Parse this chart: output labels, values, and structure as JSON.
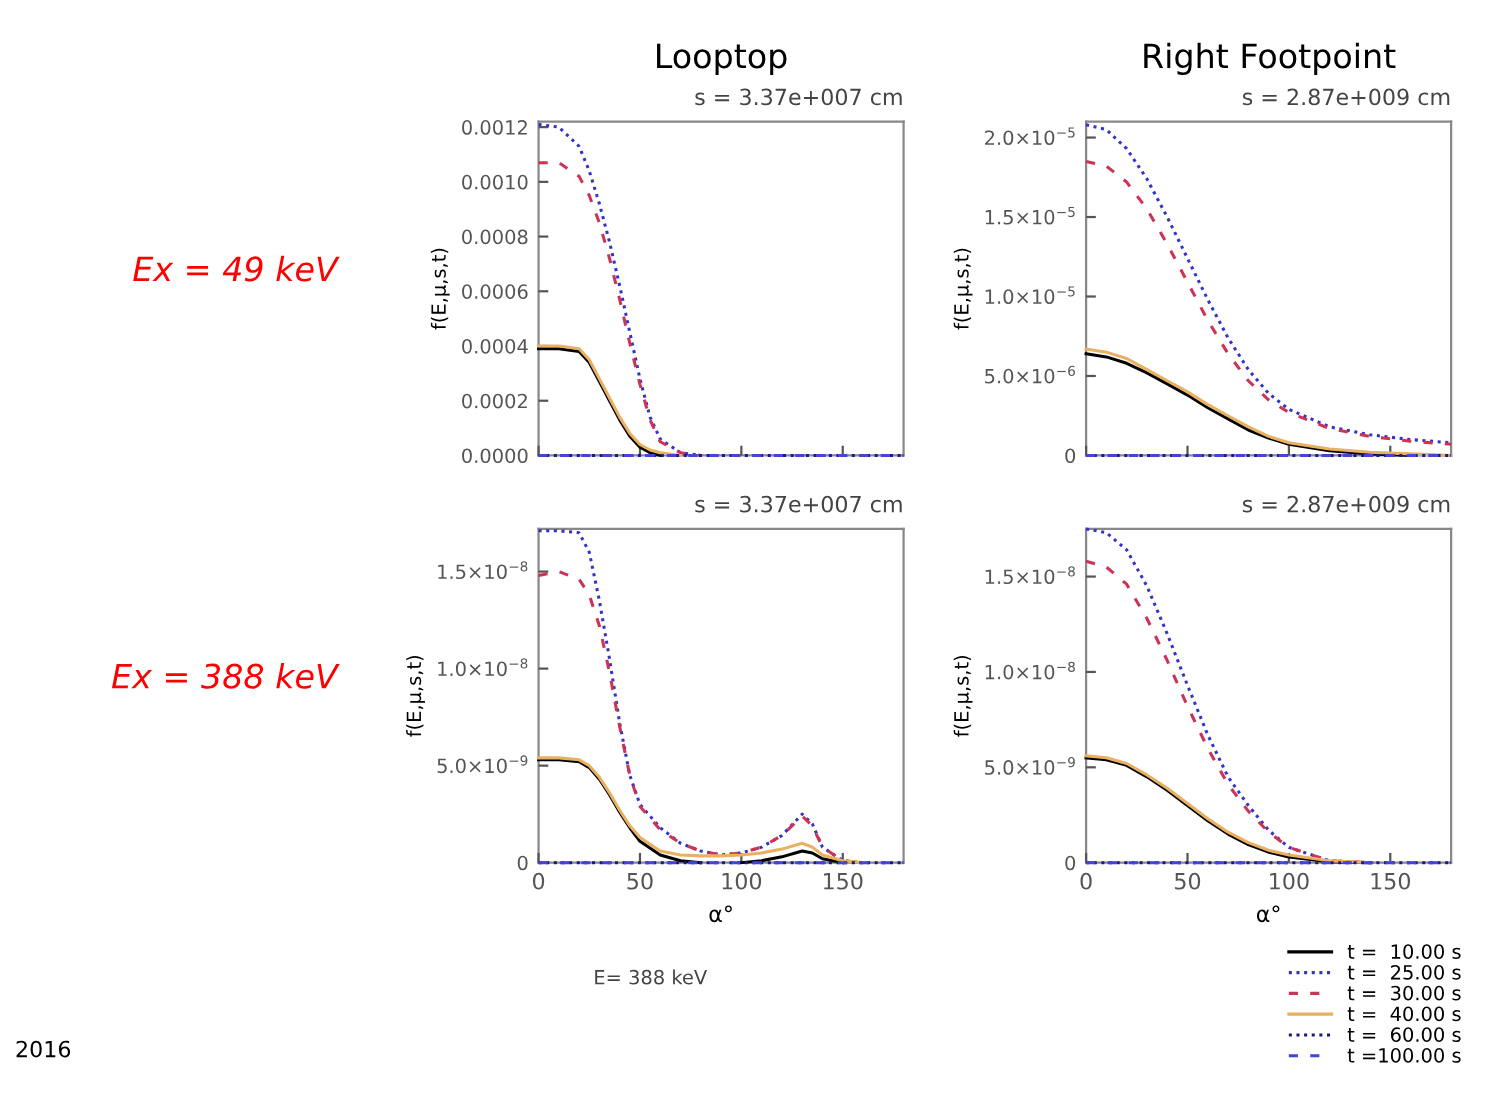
{
  "chart_data": [
    {
      "type": "line",
      "title": "Looptop",
      "subtitle": "s = 3.37e+007 cm",
      "ylabel": "f(E,μ,s,t)",
      "annotations": [
        "Ex = 49 keV"
      ],
      "tick_labels": "y",
      "legend": false,
      "x": [
        0,
        10,
        20,
        25,
        30,
        35,
        40,
        45,
        50,
        55,
        60,
        70,
        80,
        100,
        120,
        140,
        160,
        180
      ],
      "xlim": [
        0,
        180
      ],
      "xticks": [
        {
          "value": 0,
          "label": null
        },
        {
          "value": 50,
          "label": null
        },
        {
          "value": 100,
          "label": null
        },
        {
          "value": 150,
          "label": null
        }
      ],
      "ylim": [
        0,
        0.00122
      ],
      "yticks": [
        {
          "value": 0,
          "label": "0.0000"
        },
        {
          "value": 0.0002,
          "label": "0.0002"
        },
        {
          "value": 0.0004,
          "label": "0.0004"
        },
        {
          "value": 0.0006,
          "label": "0.0006"
        },
        {
          "value": 0.0008,
          "label": "0.0008"
        },
        {
          "value": 0.001,
          "label": "0.0010"
        },
        {
          "value": 0.0012,
          "label": "0.0012"
        }
      ],
      "series": [
        {
          "color": "#000000",
          "line_style": "solid",
          "values": [
            0.00039,
            0.00039,
            0.00038,
            0.00034,
            0.00027,
            0.0002,
            0.00013,
            7e-05,
            3e-05,
            1e-05,
            0,
            null,
            null,
            null,
            null,
            null,
            null,
            null
          ]
        },
        {
          "color": "#3333cc",
          "line_style": "dotted",
          "values": [
            0.00121,
            0.0012,
            0.00113,
            0.00104,
            0.00092,
            0.00078,
            0.00062,
            0.00045,
            0.00028,
            0.00014,
            6e-05,
            1e-05,
            0,
            null,
            null,
            null,
            null,
            null
          ]
        },
        {
          "color": "#cc3355",
          "line_style": "dashed",
          "values": [
            0.00107,
            0.00107,
            0.00102,
            0.00095,
            0.00085,
            0.00072,
            0.00057,
            0.00041,
            0.00026,
            0.00013,
            5e-05,
            1e-05,
            0,
            null,
            null,
            null,
            null,
            null
          ]
        },
        {
          "color": "#e8b060",
          "line_style": "solid",
          "values": [
            0.0004,
            0.0004,
            0.00039,
            0.00035,
            0.00028,
            0.00021,
            0.00014,
            8e-05,
            4e-05,
            2e-05,
            1e-05,
            0,
            null,
            null,
            null,
            null,
            null,
            null
          ]
        },
        {
          "color": "#1a1a80",
          "line_style": "dotted",
          "values": [
            0,
            0,
            0,
            0,
            0,
            0,
            0,
            0,
            0,
            0,
            0,
            0,
            0,
            0,
            0,
            0,
            0,
            0
          ]
        },
        {
          "color": "#4444dd",
          "line_style": "dashed",
          "values": [
            0,
            0,
            0,
            0,
            0,
            0,
            0,
            0,
            0,
            0,
            0,
            0,
            0,
            0,
            0,
            0,
            0,
            0
          ]
        }
      ]
    },
    {
      "type": "line",
      "title": "Right Footpoint",
      "subtitle": "s = 2.87e+009 cm",
      "ylabel": "f(E,μ,s,t)",
      "tick_labels": "y",
      "legend": false,
      "x": [
        0,
        10,
        20,
        30,
        40,
        50,
        60,
        70,
        80,
        90,
        100,
        120,
        140,
        160,
        180
      ],
      "xlim": [
        0,
        180
      ],
      "xticks": [
        {
          "value": 0,
          "label": null
        },
        {
          "value": 50,
          "label": null
        },
        {
          "value": 100,
          "label": null
        },
        {
          "value": 150,
          "label": null
        }
      ],
      "ylim": [
        0,
        2.1e-05
      ],
      "yticks": [
        {
          "value": 0,
          "label": "0"
        },
        {
          "value": 5e-06,
          "label": "5.0×10$^{−6}$"
        },
        {
          "value": 1e-05,
          "label": "1.0×10$^{−5}$"
        },
        {
          "value": 1.5e-05,
          "label": "1.5×10$^{−5}$"
        },
        {
          "value": 2e-05,
          "label": "2.0×10$^{−5}$"
        }
      ],
      "series": [
        {
          "color": "#000000",
          "line_style": "solid",
          "values": [
            6.4e-06,
            6.2e-06,
            5.8e-06,
            5.2e-06,
            4.5e-06,
            3.8e-06,
            3e-06,
            2.3e-06,
            1.6e-06,
            1.1e-06,
            7e-07,
            3e-07,
            1e-07,
            0,
            null
          ]
        },
        {
          "color": "#3333cc",
          "line_style": "dotted",
          "values": [
            2.08e-05,
            2.05e-05,
            1.93e-05,
            1.74e-05,
            1.5e-05,
            1.24e-05,
            9.8e-06,
            7.4e-06,
            5.4e-06,
            3.9e-06,
            2.9e-06,
            1.8e-06,
            1.3e-06,
            1e-06,
            8e-07
          ]
        },
        {
          "color": "#cc3355",
          "line_style": "dashed",
          "values": [
            1.85e-05,
            1.82e-05,
            1.72e-05,
            1.55e-05,
            1.33e-05,
            1.09e-05,
            8.5e-06,
            6.4e-06,
            4.7e-06,
            3.5e-06,
            2.7e-06,
            1.7e-06,
            1.2e-06,
            9e-07,
            7e-07
          ]
        },
        {
          "color": "#e8b060",
          "line_style": "solid",
          "values": [
            6.7e-06,
            6.5e-06,
            6.1e-06,
            5.4e-06,
            4.7e-06,
            4e-06,
            3.2e-06,
            2.5e-06,
            1.8e-06,
            1.2e-06,
            8e-07,
            4e-07,
            2e-07,
            1e-07,
            0
          ]
        },
        {
          "color": "#1a1a80",
          "line_style": "dotted",
          "values": [
            0,
            0,
            0,
            0,
            0,
            0,
            0,
            0,
            0,
            0,
            0,
            0,
            0,
            0,
            0
          ]
        },
        {
          "color": "#4444dd",
          "line_style": "dashed",
          "values": [
            0,
            0,
            0,
            0,
            0,
            0,
            0,
            0,
            0,
            0,
            0,
            0,
            0,
            0,
            0
          ]
        }
      ]
    },
    {
      "type": "line",
      "title": "s = 3.37e+007 cm",
      "xlabel": "α°",
      "ylabel": "f(E,μ,s,t)",
      "annotations": [
        "Ex = 388 keV",
        "E= 388 keV",
        "2016"
      ],
      "legend": false,
      "x": [
        0,
        10,
        20,
        25,
        30,
        35,
        40,
        45,
        50,
        60,
        70,
        80,
        90,
        100,
        110,
        120,
        130,
        135,
        140,
        150,
        160,
        180
      ],
      "xlim": [
        0,
        180
      ],
      "xticks": [
        0,
        50,
        100,
        150
      ],
      "ylim": [
        0,
        1.72e-08
      ],
      "yticks": [
        {
          "value": 0,
          "label": "0"
        },
        {
          "value": 5e-09,
          "label": "5.0×10$^{−9}$"
        },
        {
          "value": 1e-08,
          "label": "1.0×10$^{−8}$"
        },
        {
          "value": 1.5e-08,
          "label": "1.5×10$^{−8}$"
        }
      ],
      "series": [
        {
          "color": "#000000",
          "line_style": "solid",
          "values": [
            5.3e-09,
            5.3e-09,
            5.2e-09,
            4.9e-09,
            4.3e-09,
            3.5e-09,
            2.6e-09,
            1.8e-09,
            1.1e-09,
            4e-10,
            1e-10,
            0,
            null,
            0,
            1e-10,
            3e-10,
            6e-10,
            5e-10,
            2e-10,
            0,
            null,
            null
          ]
        },
        {
          "color": "#3333cc",
          "line_style": "dotted",
          "values": [
            1.71e-08,
            1.71e-08,
            1.7e-08,
            1.6e-08,
            1.35e-08,
            1.05e-08,
            7.2e-09,
            4.5e-09,
            3e-09,
            1.8e-09,
            1e-09,
            6e-10,
            4e-10,
            5e-10,
            8e-10,
            1.4e-09,
            2.5e-09,
            2e-09,
            8e-10,
            1e-10,
            0,
            null
          ]
        },
        {
          "color": "#cc3355",
          "line_style": "dashed",
          "values": [
            1.48e-08,
            1.5e-08,
            1.46e-08,
            1.38e-08,
            1.22e-08,
            9.8e-09,
            7e-09,
            4.5e-09,
            2.9e-09,
            1.7e-09,
            1e-09,
            6e-10,
            4e-10,
            5e-10,
            8e-10,
            1.4e-09,
            2.4e-09,
            1.9e-09,
            8e-10,
            1e-10,
            0,
            null
          ]
        },
        {
          "color": "#e8b060",
          "line_style": "solid",
          "values": [
            5.4e-09,
            5.4e-09,
            5.3e-09,
            5e-09,
            4.4e-09,
            3.6e-09,
            2.7e-09,
            1.9e-09,
            1.3e-09,
            6e-10,
            4e-10,
            3.5e-10,
            3.5e-10,
            4e-10,
            5e-10,
            7e-10,
            1e-09,
            8e-10,
            4e-10,
            1e-10,
            0,
            null
          ]
        },
        {
          "color": "#1a1a80",
          "line_style": "dotted",
          "values": [
            0,
            0,
            0,
            0,
            0,
            0,
            0,
            0,
            0,
            0,
            0,
            0,
            0,
            0,
            0,
            0,
            0,
            0,
            0,
            0,
            0,
            0
          ]
        },
        {
          "color": "#4444dd",
          "line_style": "dashed",
          "values": [
            0,
            0,
            0,
            0,
            0,
            0,
            0,
            0,
            0,
            0,
            0,
            0,
            0,
            0,
            0,
            0,
            0,
            0,
            0,
            0,
            0,
            0
          ]
        }
      ]
    },
    {
      "type": "line",
      "title": "s = 2.87e+009 cm",
      "xlabel": "α°",
      "ylabel": "f(E,μ,s,t)",
      "legend": "bottom right",
      "x": [
        0,
        10,
        20,
        30,
        40,
        50,
        60,
        70,
        80,
        90,
        100,
        120,
        140,
        160,
        180
      ],
      "xlim": [
        0,
        180
      ],
      "xticks": [
        0,
        50,
        100,
        150
      ],
      "ylim": [
        0,
        1.75e-08
      ],
      "yticks": [
        {
          "value": 0,
          "label": "0"
        },
        {
          "value": 5e-09,
          "label": "5.0×10$^{−9}$"
        },
        {
          "value": 1e-08,
          "label": "1.0×10$^{−8}$"
        },
        {
          "value": 1.5e-08,
          "label": "1.5×10$^{−8}$"
        }
      ],
      "series": [
        {
          "name": "t =  10.00 s",
          "color": "#000000",
          "line_style": "solid",
          "values": [
            5.5e-09,
            5.4e-09,
            5.1e-09,
            4.5e-09,
            3.8e-09,
            3e-09,
            2.2e-09,
            1.5e-09,
            9.5e-10,
            5.5e-10,
            3e-10,
            5e-11,
            0,
            null,
            null
          ]
        },
        {
          "name": "t =  25.00 s",
          "color": "#3333cc",
          "line_style": "dotted",
          "values": [
            1.75e-08,
            1.73e-08,
            1.64e-08,
            1.45e-08,
            1.2e-08,
            9.3e-09,
            6.7e-09,
            4.5e-09,
            3e-09,
            1.7e-09,
            8e-10,
            1e-10,
            0,
            null,
            null
          ]
        },
        {
          "name": "t =  30.00 s",
          "color": "#cc3355",
          "line_style": "dashed",
          "values": [
            1.58e-08,
            1.55e-08,
            1.46e-08,
            1.28e-08,
            1.06e-08,
            8.2e-09,
            6e-09,
            4.1e-09,
            2.7e-09,
            1.6e-09,
            8e-10,
            1e-10,
            0,
            null,
            null
          ]
        },
        {
          "name": "t =  40.00 s",
          "color": "#e8b060",
          "line_style": "solid",
          "values": [
            5.6e-09,
            5.5e-09,
            5.2e-09,
            4.6e-09,
            3.9e-09,
            3.1e-09,
            2.3e-09,
            1.6e-09,
            1.05e-09,
            6.5e-10,
            4e-10,
            1e-10,
            0,
            null,
            null
          ]
        },
        {
          "name": "t =  60.00 s",
          "color": "#1a1a80",
          "line_style": "dotted",
          "values": [
            0,
            0,
            0,
            0,
            0,
            0,
            0,
            0,
            0,
            0,
            0,
            0,
            0,
            0,
            0
          ]
        },
        {
          "name": "t =100.00 s",
          "color": "#4444dd",
          "line_style": "dashed",
          "values": [
            0,
            0,
            0,
            0,
            0,
            0,
            0,
            0,
            0,
            0,
            0,
            0,
            0,
            0,
            0
          ]
        }
      ]
    }
  ]
}
